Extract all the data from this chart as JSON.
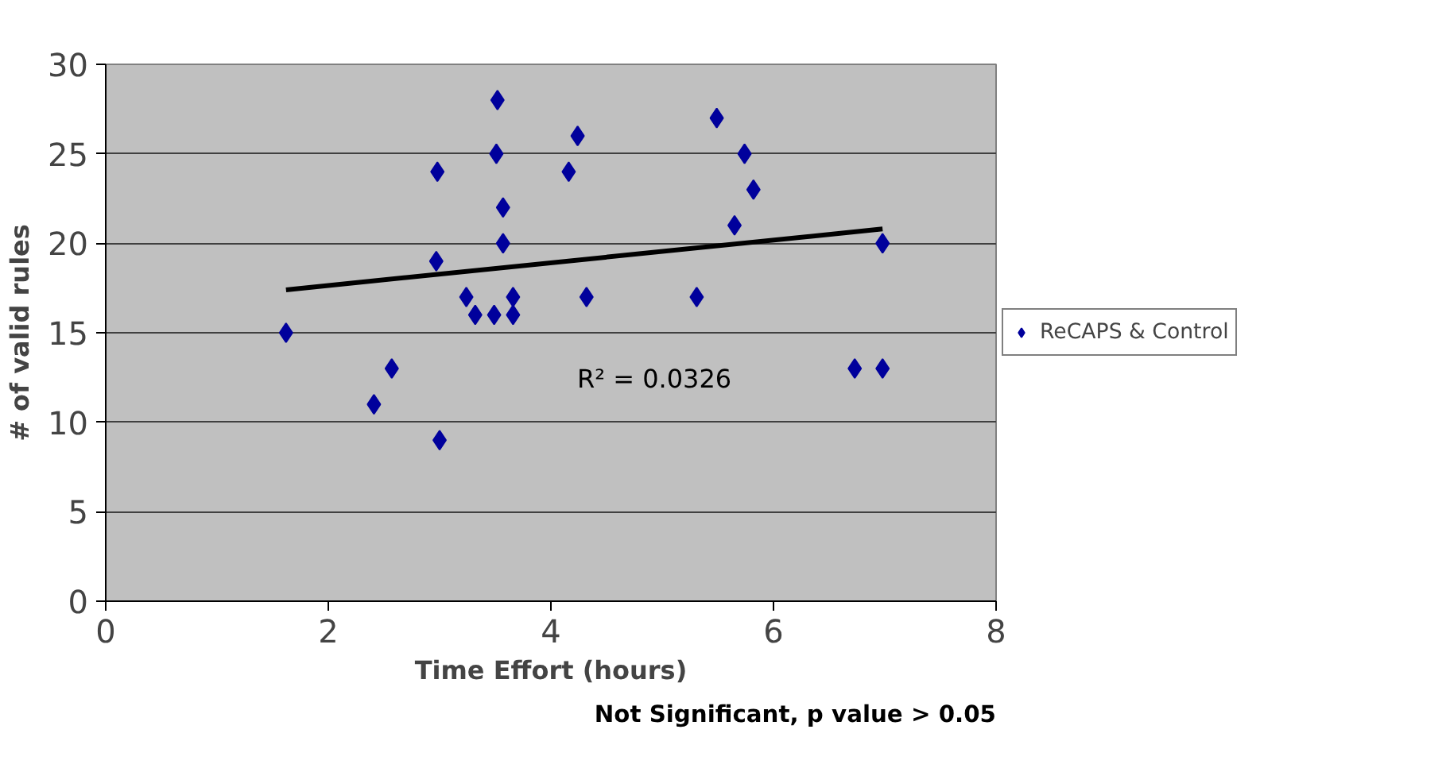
{
  "chart_data": {
    "type": "scatter",
    "xlabel": "Time Effort (hours)",
    "ylabel": "# of valid rules",
    "x": [
      1.62,
      2.41,
      2.57,
      2.98,
      2.97,
      3.0,
      3.24,
      3.32,
      3.52,
      3.51,
      3.49,
      3.57,
      3.57,
      3.66,
      3.66,
      4.16,
      4.24,
      4.32,
      5.31,
      5.49,
      5.65,
      5.74,
      5.82,
      6.98,
      6.73,
      6.98
    ],
    "series": [
      {
        "name": "ReCAPS & Control",
        "color": "#00009c",
        "marker": "diamond",
        "values": [
          15,
          11,
          13,
          24,
          19,
          9,
          17,
          16,
          28,
          25,
          16,
          22,
          20,
          17,
          16,
          24,
          26,
          17,
          17,
          27,
          21,
          25,
          23,
          20,
          13,
          13
        ]
      },
      {
        "type": "line",
        "color": "#000000",
        "x": [
          1.62,
          6.98
        ],
        "values": [
          17.4,
          20.8
        ]
      }
    ],
    "xlim": [
      0,
      8
    ],
    "xticks": [
      0,
      2,
      4,
      6,
      8
    ],
    "ylim": [
      0,
      30
    ],
    "yticks": [
      0,
      5,
      10,
      15,
      20,
      25,
      30
    ],
    "grid": "y",
    "legend": "right",
    "annotations": [
      "R² = 0.0326",
      "Not Significant, p value > 0.05"
    ]
  }
}
